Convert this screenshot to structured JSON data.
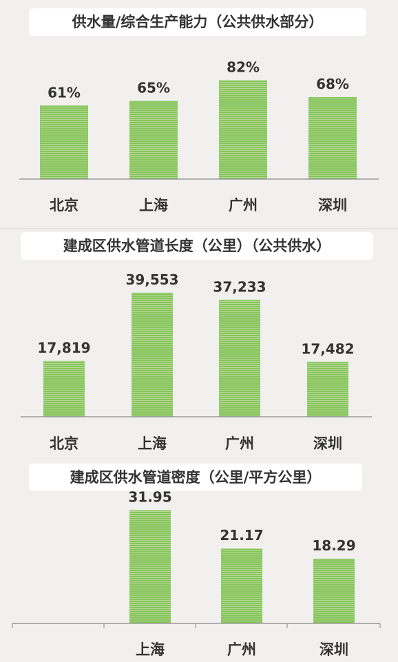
{
  "colors": {
    "bar": "#86c45a",
    "bar_stripe": "#c9e5b3",
    "axis": "#9a9a9a",
    "text": "#333333"
  },
  "chart_data": [
    {
      "type": "bar",
      "title": "供水量/综合生产能力（公共供水部分）",
      "categories": [
        "北京",
        "上海",
        "广州",
        "深圳"
      ],
      "values": [
        61,
        65,
        82,
        68
      ],
      "value_labels": [
        "61%",
        "65%",
        "82%",
        "68%"
      ],
      "ylim": [
        0,
        100
      ],
      "grid": false
    },
    {
      "type": "bar",
      "title": "建成区供水管道长度（公里）（公共供水）",
      "categories": [
        "北京",
        "上海",
        "广州",
        "深圳"
      ],
      "values": [
        17819,
        39553,
        37233,
        17482
      ],
      "value_labels": [
        "17,819",
        "39,553",
        "37,233",
        "17,482"
      ],
      "ylim": [
        0,
        45000
      ],
      "grid": false
    },
    {
      "type": "bar",
      "title": "建成区供水管道密度（公里/平方公里）",
      "categories": [
        "",
        "上海",
        "广州",
        "深圳"
      ],
      "values": [
        null,
        31.95,
        21.17,
        18.29
      ],
      "value_labels": [
        "",
        "31.95",
        "21.17",
        "18.29"
      ],
      "ylim": [
        0,
        35
      ],
      "grid": false
    }
  ]
}
